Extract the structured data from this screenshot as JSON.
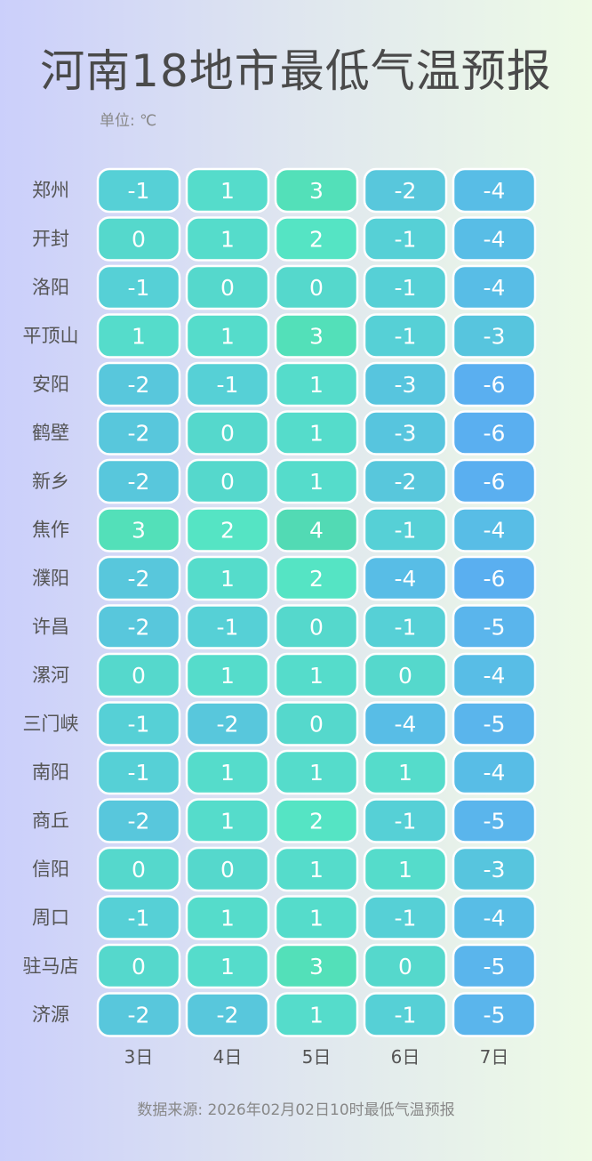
{
  "title": "河南18地市最低气温预报",
  "unit": "单位: ℃",
  "footer": "数据来源: 2026年02月02日10时最低气温预报",
  "chart_data": {
    "type": "heatmap",
    "title": "河南18地市最低气温预报",
    "x_categories": [
      "3日",
      "4日",
      "5日",
      "6日",
      "7日"
    ],
    "y_categories": [
      "郑州",
      "开封",
      "洛阳",
      "平顶山",
      "安阳",
      "鹤壁",
      "新乡",
      "焦作",
      "濮阳",
      "许昌",
      "漯河",
      "三门峡",
      "南阳",
      "商丘",
      "信阳",
      "周口",
      "驻马店",
      "济源"
    ],
    "values": [
      [
        -1,
        1,
        3,
        -2,
        -4
      ],
      [
        0,
        1,
        2,
        -1,
        -4
      ],
      [
        -1,
        0,
        0,
        -1,
        -4
      ],
      [
        1,
        1,
        3,
        -1,
        -3
      ],
      [
        -2,
        -1,
        1,
        -3,
        -6
      ],
      [
        -2,
        0,
        1,
        -3,
        -6
      ],
      [
        -2,
        0,
        1,
        -2,
        -6
      ],
      [
        3,
        2,
        4,
        -1,
        -4
      ],
      [
        -2,
        1,
        2,
        -4,
        -6
      ],
      [
        -2,
        -1,
        0,
        -1,
        -5
      ],
      [
        0,
        1,
        1,
        0,
        -4
      ],
      [
        -1,
        -2,
        0,
        -4,
        -5
      ],
      [
        -1,
        1,
        1,
        1,
        -4
      ],
      [
        -2,
        1,
        2,
        -1,
        -5
      ],
      [
        0,
        0,
        1,
        1,
        -3
      ],
      [
        -1,
        1,
        1,
        -1,
        -4
      ],
      [
        0,
        1,
        3,
        0,
        -5
      ],
      [
        -2,
        -2,
        1,
        -1,
        -5
      ]
    ],
    "color_scale": {
      "-6": "#5aaff0",
      "-5": "#5ab5ec",
      "-4": "#58bde6",
      "-3": "#57c5de",
      "-2": "#58c7dc",
      "-1": "#56d0d6",
      "0": "#55d8cc",
      "1": "#55dccb",
      "2": "#55e4c4",
      "3": "#53e0b9",
      "4": "#52dab4"
    }
  }
}
